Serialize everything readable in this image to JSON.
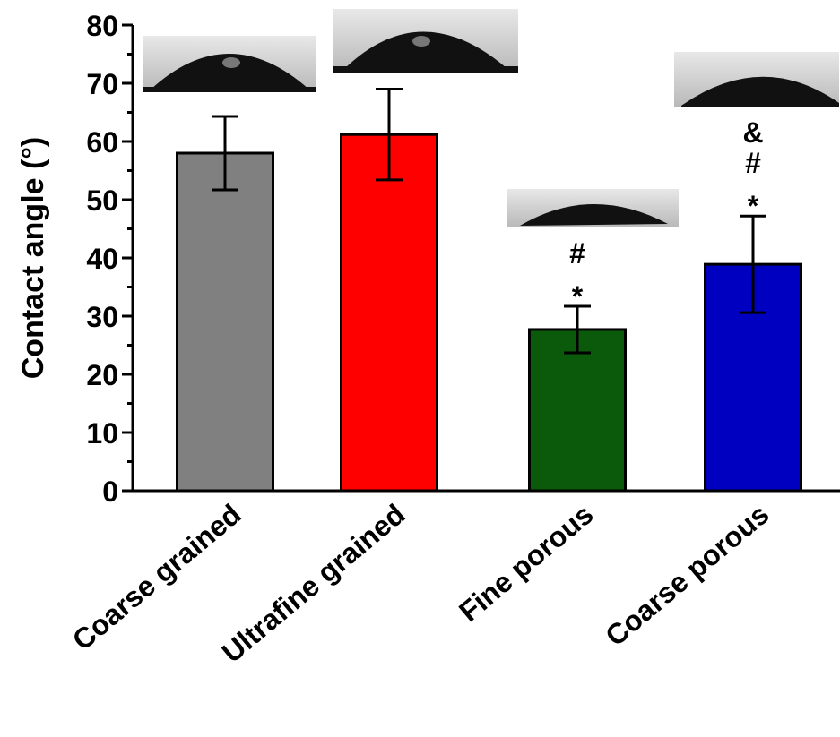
{
  "chart_data": {
    "type": "bar",
    "y_label": "Contact angle  (°)",
    "categories": [
      "Coarse grained",
      "Ultrafine grained",
      "Fine porous",
      "Coarse porous"
    ],
    "values": [
      58,
      61.2,
      27.7,
      38.9
    ],
    "errors": [
      6.3,
      7.8,
      4,
      8.3
    ],
    "colors": [
      "#808080",
      "#ff0000",
      "#0b5a0b",
      "#0000c0"
    ],
    "annotations": [
      [],
      [],
      [
        "#",
        "*"
      ],
      [
        "&",
        "#",
        "*"
      ]
    ],
    "ylim": [
      0,
      80
    ],
    "yticks": [
      0,
      10,
      20,
      30,
      40,
      50,
      60,
      70,
      80
    ]
  }
}
